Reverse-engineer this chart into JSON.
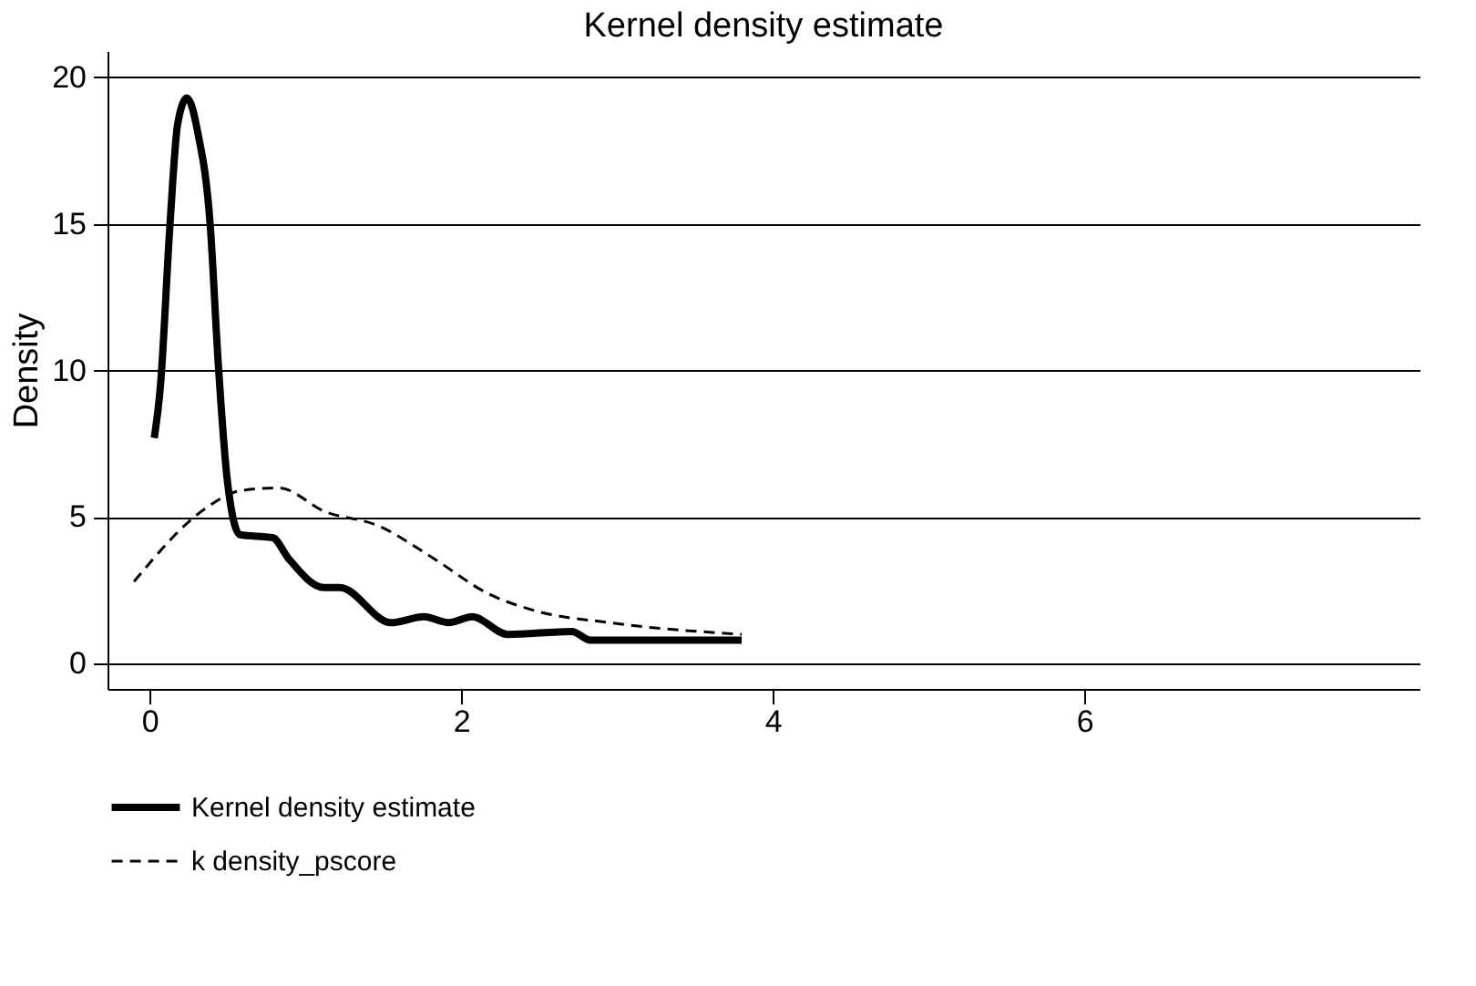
{
  "chart_data": {
    "type": "line",
    "title": "Kernel density estimate",
    "ylabel": "Density",
    "xlim": [
      -0.27,
      8.15
    ],
    "xticks": [
      0,
      2,
      4,
      6
    ],
    "ylim": [
      -0.86,
      20.9
    ],
    "yticks": [
      0,
      5,
      10,
      15,
      20
    ],
    "grid": "y",
    "legend": "bottom",
    "series": [
      {
        "name": "Kernel density estimate",
        "color": "#000000",
        "line_style": "solid",
        "x": [
          0.03,
          0.07,
          0.13,
          0.18,
          0.24,
          0.31,
          0.39,
          0.44,
          0.5,
          0.58,
          0.79,
          0.89,
          1.12,
          1.22,
          1.55,
          1.76,
          1.92,
          2.07,
          2.3,
          2.71,
          2.83,
          3.8
        ],
        "values": [
          7.7,
          9.5,
          14.9,
          18.4,
          19.3,
          18.1,
          14.9,
          10.3,
          6.2,
          4.4,
          4.3,
          3.6,
          2.6,
          2.6,
          1.4,
          1.6,
          1.4,
          1.6,
          1.0,
          1.1,
          0.8,
          0.8
        ]
      },
      {
        "name": "k density_pscore",
        "color": "#000000",
        "line_style": "dashed",
        "x": [
          -0.1,
          0.36,
          0.58,
          0.83,
          1.12,
          1.47,
          1.82,
          2.17,
          2.48,
          2.95,
          3.8
        ],
        "values": [
          2.8,
          5.3,
          5.9,
          6.0,
          5.2,
          4.7,
          3.6,
          2.4,
          1.8,
          1.4,
          1.0
        ]
      }
    ]
  }
}
